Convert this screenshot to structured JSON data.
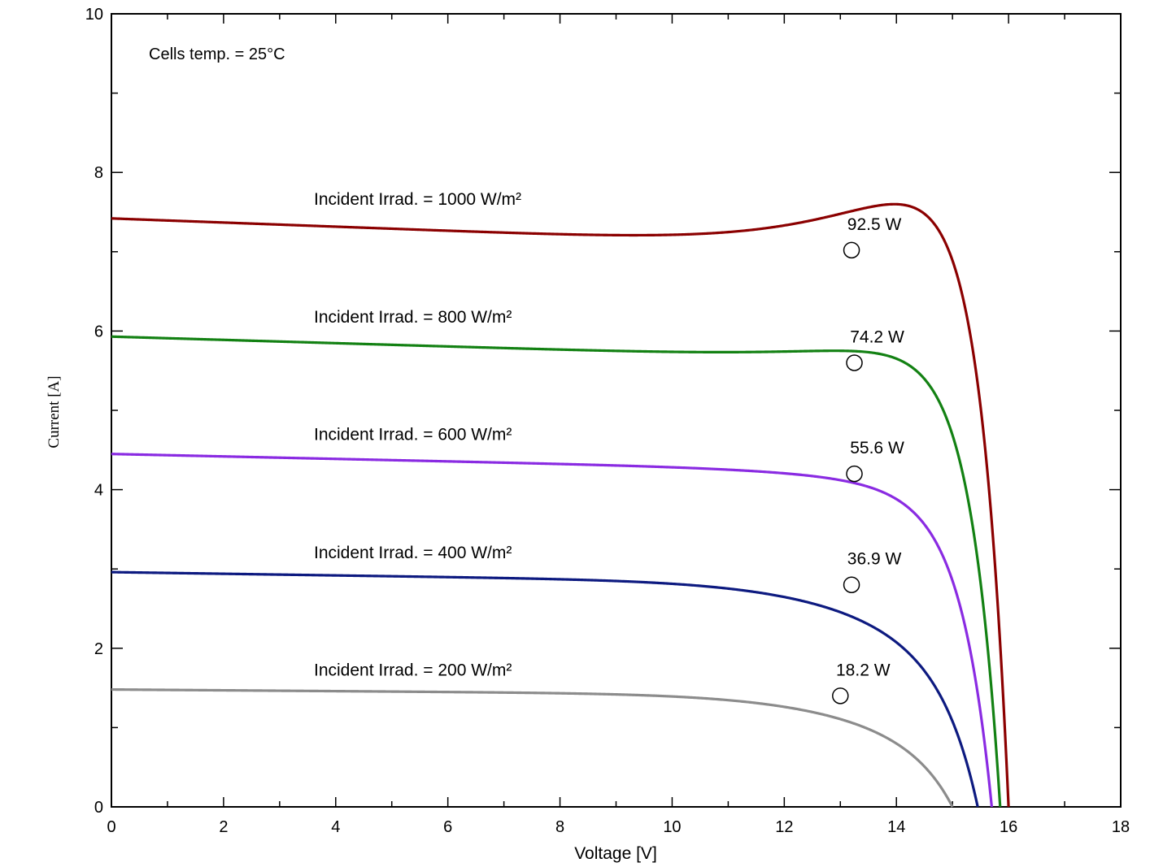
{
  "chart_data": {
    "type": "line",
    "title": "",
    "xlabel": "Voltage [V]",
    "ylabel": "Current [A]",
    "xlim": [
      0,
      18
    ],
    "ylim": [
      0,
      10
    ],
    "xticks": [
      0,
      2,
      4,
      6,
      8,
      10,
      12,
      14,
      16,
      18
    ],
    "yticks": [
      0,
      2,
      4,
      6,
      8,
      10
    ],
    "grid": false,
    "annotation": "Cells temp. = 25°C",
    "series": [
      {
        "name": "Incident Irrad. = 1000 W/m²",
        "color": "#8b0000",
        "isc": 7.42,
        "voc": 16.0,
        "mpp": {
          "v": 13.2,
          "i": 7.02,
          "label": "92.5 W"
        }
      },
      {
        "name": "Incident Irrad. = 800 W/m²",
        "color": "#138113",
        "isc": 5.93,
        "voc": 15.85,
        "mpp": {
          "v": 13.25,
          "i": 5.6,
          "label": "74.2 W"
        }
      },
      {
        "name": "Incident Irrad. = 600 W/m²",
        "color": "#8a2be2",
        "isc": 4.45,
        "voc": 15.7,
        "mpp": {
          "v": 13.25,
          "i": 4.2,
          "label": "55.6 W"
        }
      },
      {
        "name": "Incident Irrad. = 400 W/m²",
        "color": "#0d1a80",
        "isc": 2.96,
        "voc": 15.45,
        "mpp": {
          "v": 13.2,
          "i": 2.8,
          "label": "36.9 W"
        }
      },
      {
        "name": "Incident Irrad. = 200 W/m²",
        "color": "#8c8c8c",
        "isc": 1.48,
        "voc": 15.0,
        "mpp": {
          "v": 13.0,
          "i": 1.4,
          "label": "18.2 W"
        }
      }
    ]
  }
}
